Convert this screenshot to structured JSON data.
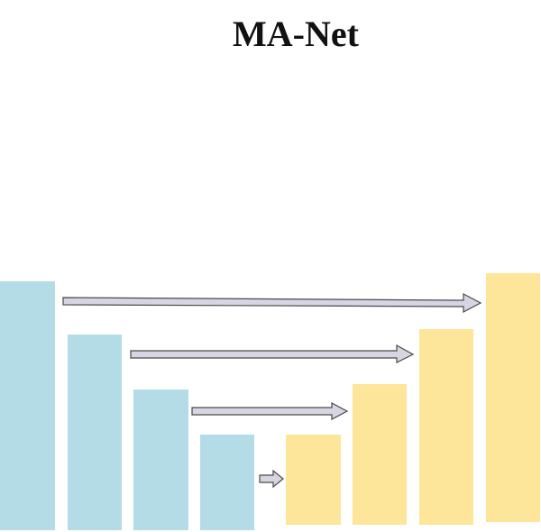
{
  "title": "MA-Net",
  "colors": {
    "encoder": "#b4dce6",
    "decoder": "#fde59a",
    "arrow_fill": "#d8d4e2",
    "arrow_stroke": "#4a4a4a"
  },
  "encoder_blocks": [
    {
      "name": "encoder-block-1"
    },
    {
      "name": "encoder-block-2"
    },
    {
      "name": "encoder-block-3"
    },
    {
      "name": "encoder-block-4"
    }
  ],
  "decoder_blocks": [
    {
      "name": "decoder-block-1"
    },
    {
      "name": "decoder-block-2"
    },
    {
      "name": "decoder-block-3"
    },
    {
      "name": "decoder-block-4"
    }
  ],
  "connections": [
    {
      "name": "skip-connection-1"
    },
    {
      "name": "skip-connection-2"
    },
    {
      "name": "skip-connection-3"
    },
    {
      "name": "bottleneck-arrow"
    }
  ]
}
